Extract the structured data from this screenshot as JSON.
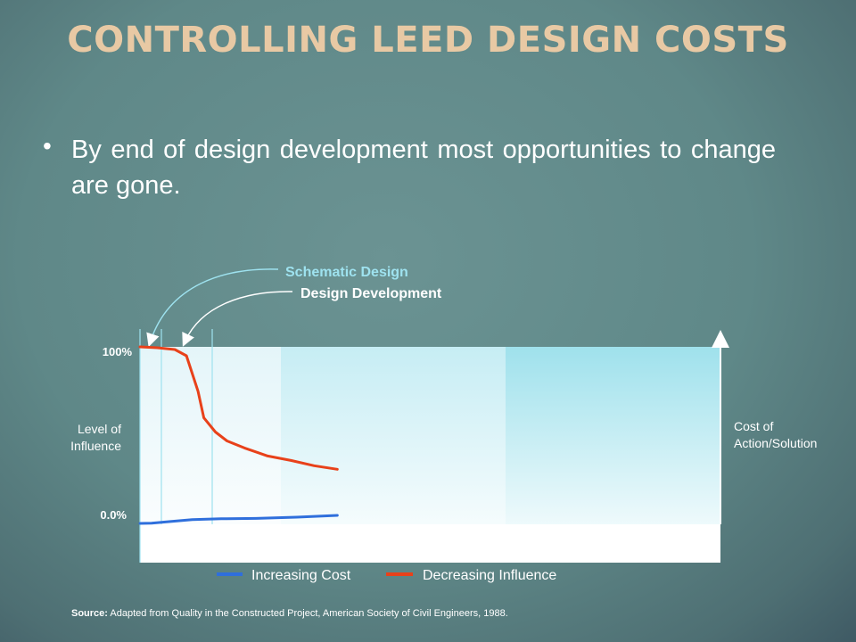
{
  "slide": {
    "title": "CONTROLLING LEED DESIGN COSTS",
    "bullet": "By end of design development most opportunities to change are gone.",
    "source_label": "Source:",
    "source_text": "Adapted from Quality in the Constructed Project, American Society of Civil Engineers, 1988."
  },
  "chart_data": {
    "type": "line",
    "y_left": {
      "label": "Level of Influence",
      "ticks": [
        "100%",
        "0.0%"
      ],
      "range": [
        0,
        100
      ]
    },
    "y_right": {
      "label": "Cost of Action/Solution"
    },
    "annotations": [
      "Schematic Design",
      "Design Development"
    ],
    "legend": {
      "placement": "bottom"
    },
    "series": [
      {
        "name": "Increasing Cost",
        "color": "#2f6fdc",
        "x": [
          0,
          0.02,
          0.05,
          0.09,
          0.14,
          0.2,
          0.27,
          0.34
        ],
        "y": [
          0.5,
          0.6,
          1.5,
          2.6,
          3.1,
          3.3,
          4.0,
          5.0
        ]
      },
      {
        "name": "Decreasing Influence",
        "color": "#e8411a",
        "x": [
          0,
          0.03,
          0.06,
          0.08,
          0.09,
          0.1,
          0.11,
          0.13,
          0.15,
          0.18,
          0.22,
          0.26,
          0.3,
          0.34
        ],
        "y": [
          100,
          99.5,
          98.5,
          95,
          85,
          75,
          60,
          52,
          47,
          43,
          38.5,
          36,
          33,
          31
        ]
      }
    ],
    "colors": {
      "schematic": "#9ee2ef",
      "development": "#ffffff"
    }
  }
}
